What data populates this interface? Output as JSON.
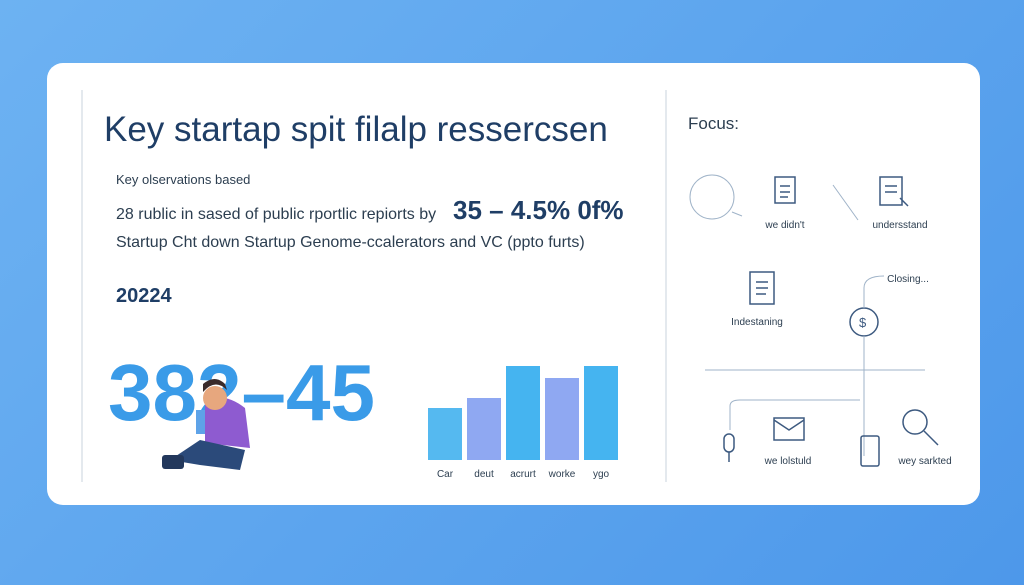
{
  "header": {
    "title": "Key startap spit filalp ressercsen"
  },
  "left": {
    "subtitle": "Key olservations based",
    "line1_text": "28 rublic in sased of public rportlic repiorts by",
    "line1_highlight": "35 – 4.5% 0f%",
    "line2": "Startup Cht down Startup Genome-ccalerators and VC (ppto furts)",
    "year": "20224",
    "big_number": "382–45"
  },
  "chart": {
    "type": "bar",
    "categories": [
      "Car",
      "deut",
      "acrurt",
      "worke",
      "ygo"
    ],
    "values": [
      52,
      62,
      94,
      82,
      94
    ],
    "colors": [
      "#55b9f0",
      "#8fa8f2",
      "#45b4f0",
      "#8fa8f2",
      "#45b4f0"
    ]
  },
  "focus": {
    "title": "Focus:",
    "items": [
      "we didn't",
      "undersstand",
      "Closing...",
      "Indestaning",
      "we lolstuld",
      "wey sarkted"
    ]
  }
}
